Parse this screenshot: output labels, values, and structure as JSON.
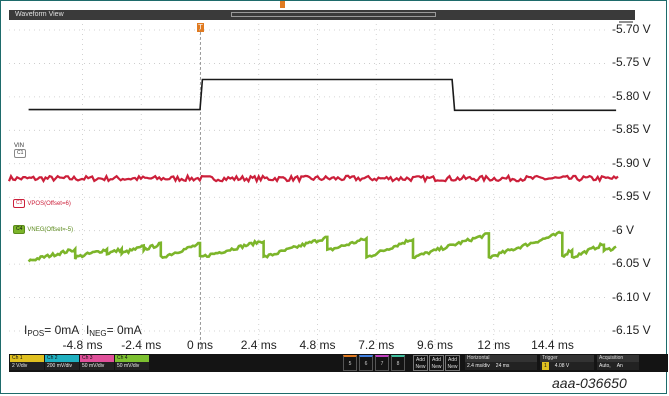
{
  "window": {
    "title": "Waveform View"
  },
  "trigger_marker": "T",
  "y_ticks": [
    "-5.70 V",
    "-5.75 V",
    "-5.80 V",
    "-5.85 V",
    "-5.90 V",
    "-5.95 V",
    "-6 V",
    "-6.05 V",
    "-6.10 V",
    "-6.15 V"
  ],
  "x_ticks": [
    "-4.8 ms",
    "-2.4 ms",
    "0 ms",
    "2.4 ms",
    "4.8 ms",
    "7.2 ms",
    "9.6 ms",
    "12 ms",
    "14.4 ms"
  ],
  "channels": {
    "vin": {
      "name": "VIN",
      "badge": "C1",
      "color": "#1a1a1a"
    },
    "vpos": {
      "name": "VPOS(Offset=6)",
      "badge": "C3",
      "color": "#cc1f3a"
    },
    "vneg": {
      "name": "VNEG(Offset=-5)",
      "badge": "C4",
      "color": "#7cb52a"
    }
  },
  "note": {
    "i_pos_label": "I",
    "i_pos_sub": "POS",
    "i_pos_val": "= 0mA",
    "i_neg_label": "I",
    "i_neg_sub": "NEG",
    "i_neg_val": "= 0mA"
  },
  "bottom_bar": {
    "ch1": {
      "label": "Ch 1",
      "scale": "2 V/div",
      "color": "#e0c020"
    },
    "ch2": {
      "label": "Ch 2",
      "scale": "200 mV/div",
      "color": "#20b0c0"
    },
    "ch3": {
      "label": "Ch 3",
      "scale": "50 mV/div",
      "color": "#e0509a"
    },
    "ch4": {
      "label": "Ch 4",
      "scale": "50 mV/div",
      "color": "#7cc030"
    },
    "small_buttons": [
      "5",
      "6",
      "7",
      "8"
    ],
    "add_buttons": [
      "Add New",
      "Add New",
      "Add New"
    ],
    "horizontal": {
      "title": "Horizontal",
      "scale": "2.4 ms/div",
      "span": "24 ms"
    },
    "trigger": {
      "title": "Trigger",
      "source": "1",
      "level": "4.08 V"
    },
    "acquisition": {
      "title": "Acquisition",
      "mode": "Auto,",
      "extra": "An"
    }
  },
  "figure_id": "aaa-036650",
  "chart_data": {
    "type": "line",
    "xlabel": "",
    "ylabel": "",
    "x_unit": "ms",
    "y_unit": "V",
    "xlim": [
      -4.8,
      14.4
    ],
    "ylim": [
      -6.15,
      -5.7
    ],
    "grid": true,
    "series": [
      {
        "name": "VIN",
        "color": "#1a1a1a",
        "points": [
          [
            -7.0,
            -5.819
          ],
          [
            0.0,
            -5.819
          ],
          [
            0.1,
            -5.774
          ],
          [
            10.3,
            -5.774
          ],
          [
            10.4,
            -5.82
          ],
          [
            17.0,
            -5.82
          ]
        ]
      },
      {
        "name": "VPOS(Offset=6)",
        "color": "#cc1f3a",
        "level": -5.922,
        "noise": 0.004
      },
      {
        "name": "VNEG(Offset=-5)",
        "color": "#7cb52a",
        "sawtooth_segments": [
          [
            -7.0,
            -6.045,
            -5.1,
            -6.028
          ],
          [
            -5.1,
            -6.04,
            -3.8,
            -6.028
          ],
          [
            -3.8,
            -6.034,
            -3.2,
            -6.028
          ],
          [
            -3.2,
            -6.034,
            -2.3,
            -6.024
          ],
          [
            -2.3,
            -6.028,
            -1.6,
            -6.02
          ],
          [
            -1.6,
            -6.04,
            0.0,
            -6.02
          ],
          [
            0.0,
            -6.04,
            2.6,
            -6.015
          ],
          [
            2.6,
            -6.04,
            5.2,
            -6.01
          ],
          [
            5.2,
            -6.03,
            6.8,
            -6.012
          ],
          [
            6.8,
            -6.04,
            8.7,
            -6.012
          ],
          [
            8.7,
            -6.04,
            11.8,
            -6.005
          ],
          [
            11.8,
            -6.04,
            14.8,
            -6.003
          ],
          [
            14.8,
            -6.038,
            15.2,
            -6.028
          ],
          [
            15.2,
            -6.04,
            16.5,
            -6.02
          ],
          [
            16.5,
            -6.03,
            17.0,
            -6.025
          ]
        ]
      }
    ]
  }
}
